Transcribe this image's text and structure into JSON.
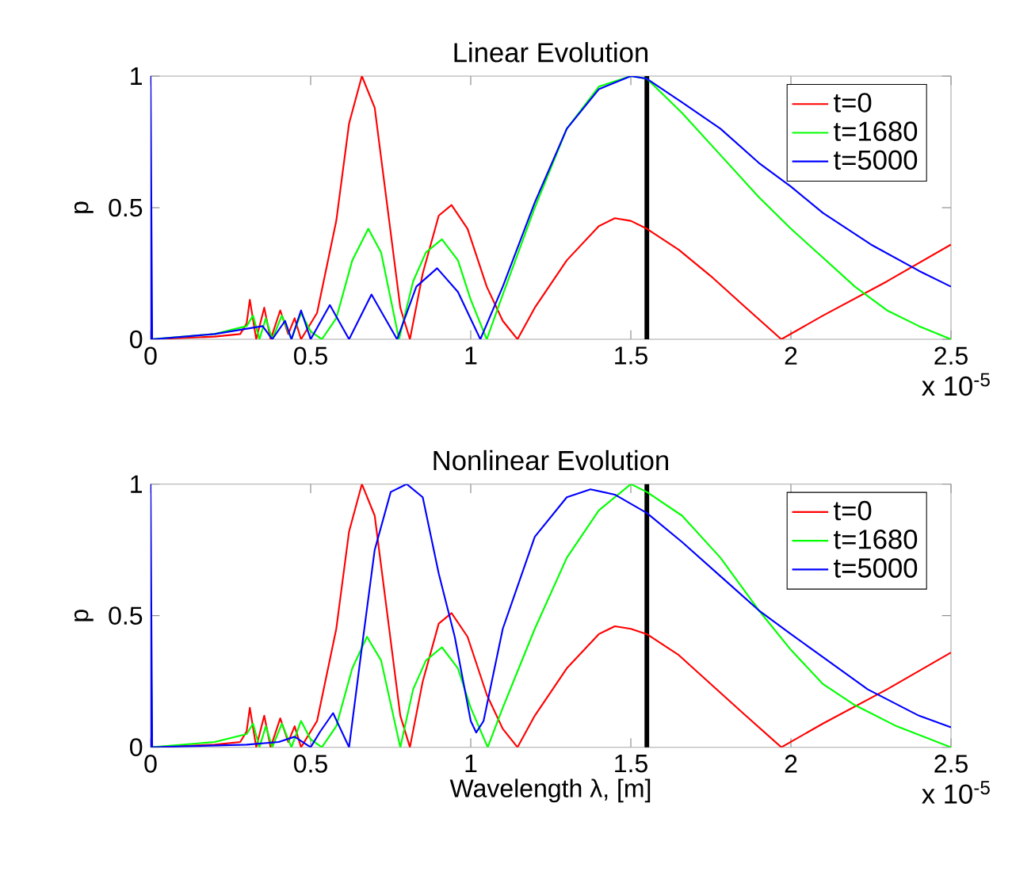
{
  "chart_data": [
    {
      "type": "line",
      "title": "Linear Evolution",
      "ylabel": "p",
      "annotations": [
        "x 10$^{-5}$"
      ],
      "xlim": [
        0,
        2.5
      ],
      "ylim": [
        0,
        1
      ],
      "xticks": [
        0,
        0.5,
        1,
        1.5,
        2,
        2.5
      ],
      "yticks": [
        0,
        0.5,
        1
      ],
      "legend": "top right",
      "ref_lines": [
        {
          "axis": "x",
          "value": 1.55,
          "color": "#000000"
        }
      ],
      "series": [
        {
          "name": "t=0",
          "color": "#ff0000",
          "x": [
            0,
            0.2,
            0.28,
            0.3,
            0.31,
            0.33,
            0.355,
            0.375,
            0.405,
            0.43,
            0.45,
            0.47,
            0.52,
            0.58,
            0.62,
            0.66,
            0.7,
            0.74,
            0.78,
            0.81,
            0.85,
            0.9,
            0.94,
            0.99,
            1.05,
            1.1,
            1.146,
            1.2,
            1.3,
            1.4,
            1.45,
            1.5,
            1.55,
            1.65,
            1.75,
            1.85,
            1.97,
            2.1,
            2.3,
            2.5
          ],
          "values": [
            0,
            0.01,
            0.02,
            0.06,
            0.15,
            0.0,
            0.12,
            0.0,
            0.11,
            0.02,
            0.08,
            0,
            0.1,
            0.45,
            0.82,
            1.0,
            0.88,
            0.5,
            0.12,
            0,
            0.25,
            0.47,
            0.51,
            0.42,
            0.2,
            0.07,
            0,
            0.12,
            0.3,
            0.43,
            0.46,
            0.45,
            0.42,
            0.34,
            0.24,
            0.13,
            0,
            0.09,
            0.22,
            0.36
          ]
        },
        {
          "name": "t=1680",
          "color": "#00ff00",
          "x": [
            0,
            0.2,
            0.3,
            0.32,
            0.34,
            0.36,
            0.38,
            0.41,
            0.44,
            0.47,
            0.5,
            0.535,
            0.58,
            0.63,
            0.68,
            0.72,
            0.776,
            0.82,
            0.86,
            0.91,
            0.96,
            1.0,
            1.05,
            1.1,
            1.2,
            1.3,
            1.4,
            1.5,
            1.55,
            1.66,
            1.78,
            1.9,
            2.0,
            2.1,
            2.2,
            2.3,
            2.4,
            2.5
          ],
          "values": [
            0,
            0.02,
            0.05,
            0.09,
            0,
            0.08,
            0,
            0.09,
            0,
            0.1,
            0.03,
            0,
            0.08,
            0.3,
            0.42,
            0.33,
            0,
            0.22,
            0.33,
            0.38,
            0.3,
            0.15,
            0,
            0.17,
            0.5,
            0.8,
            0.96,
            1.0,
            0.99,
            0.86,
            0.7,
            0.54,
            0.42,
            0.31,
            0.2,
            0.11,
            0.05,
            0.0
          ]
        },
        {
          "name": "t=5000",
          "color": "#0000ff",
          "x": [
            0,
            0,
            0.005,
            0.2,
            0.35,
            0.38,
            0.42,
            0.44,
            0.47,
            0.5,
            0.56,
            0.62,
            0.69,
            0.77,
            0.83,
            0.895,
            0.96,
            1.03,
            1.1,
            1.2,
            1.3,
            1.4,
            1.5,
            1.55,
            1.66,
            1.78,
            1.9,
            2.0,
            2.1,
            2.25,
            2.4,
            2.5
          ],
          "values": [
            0,
            1,
            0,
            0.02,
            0.05,
            0,
            0.07,
            0,
            0.11,
            0,
            0.13,
            0,
            0.17,
            0,
            0.2,
            0.27,
            0.18,
            0,
            0.2,
            0.52,
            0.8,
            0.95,
            1.0,
            0.99,
            0.9,
            0.8,
            0.67,
            0.58,
            0.48,
            0.36,
            0.26,
            0.2
          ]
        }
      ]
    },
    {
      "type": "line",
      "title": "Nonlinear Evolution",
      "xlabel": "Wavelength  λ, [m]",
      "ylabel": "p",
      "annotations": [
        "x 10$^{-5}$"
      ],
      "xlim": [
        0,
        2.5
      ],
      "ylim": [
        0,
        1
      ],
      "xticks": [
        0,
        0.5,
        1,
        1.5,
        2,
        2.5
      ],
      "yticks": [
        0,
        0.5,
        1
      ],
      "legend": "top right",
      "ref_lines": [
        {
          "axis": "x",
          "value": 1.55,
          "color": "#000000"
        }
      ],
      "series": [
        {
          "name": "t=0",
          "color": "#ff0000",
          "x": [
            0,
            0.2,
            0.28,
            0.3,
            0.31,
            0.33,
            0.355,
            0.375,
            0.405,
            0.43,
            0.45,
            0.47,
            0.52,
            0.58,
            0.62,
            0.66,
            0.7,
            0.74,
            0.78,
            0.81,
            0.85,
            0.9,
            0.94,
            0.99,
            1.05,
            1.1,
            1.146,
            1.2,
            1.3,
            1.4,
            1.45,
            1.5,
            1.55,
            1.65,
            1.75,
            1.85,
            1.97,
            2.1,
            2.3,
            2.5
          ],
          "values": [
            0,
            0.01,
            0.02,
            0.06,
            0.15,
            0.0,
            0.12,
            0.0,
            0.11,
            0.02,
            0.08,
            0,
            0.1,
            0.45,
            0.82,
            1.0,
            0.88,
            0.5,
            0.12,
            0,
            0.25,
            0.47,
            0.51,
            0.42,
            0.2,
            0.07,
            0,
            0.12,
            0.3,
            0.43,
            0.46,
            0.45,
            0.43,
            0.35,
            0.24,
            0.13,
            0,
            0.09,
            0.22,
            0.36
          ]
        },
        {
          "name": "t=1680",
          "color": "#00ff00",
          "x": [
            0,
            0,
            0.005,
            0.2,
            0.3,
            0.32,
            0.34,
            0.36,
            0.38,
            0.41,
            0.44,
            0.47,
            0.5,
            0.535,
            0.58,
            0.63,
            0.676,
            0.72,
            0.78,
            0.82,
            0.86,
            0.91,
            0.96,
            1.0,
            1.053,
            1.1,
            1.2,
            1.3,
            1.4,
            1.5,
            1.55,
            1.66,
            1.78,
            1.9,
            2.0,
            2.1,
            2.2,
            2.33,
            2.5
          ],
          "values": [
            0,
            0.5,
            0,
            0.02,
            0.05,
            0.09,
            0,
            0.08,
            0,
            0.09,
            0,
            0.1,
            0.03,
            0,
            0.08,
            0.3,
            0.42,
            0.33,
            0,
            0.22,
            0.33,
            0.38,
            0.3,
            0.15,
            0,
            0.15,
            0.45,
            0.72,
            0.9,
            1.0,
            0.97,
            0.88,
            0.72,
            0.52,
            0.37,
            0.24,
            0.16,
            0.08,
            0.0
          ]
        },
        {
          "name": "t=5000",
          "color": "#0000ff",
          "x": [
            0,
            0,
            0.005,
            0.3,
            0.4,
            0.45,
            0.5,
            0.53,
            0.57,
            0.62,
            0.66,
            0.7,
            0.75,
            0.8,
            0.85,
            0.9,
            0.95,
            1.0,
            1.017,
            1.04,
            1.1,
            1.2,
            1.3,
            1.374,
            1.45,
            1.55,
            1.66,
            1.78,
            1.9,
            2.0,
            2.08,
            2.24,
            2.4,
            2.5
          ],
          "values": [
            0,
            1,
            0,
            0.01,
            0.02,
            0.04,
            0.0,
            0.06,
            0.13,
            0,
            0.38,
            0.75,
            0.97,
            1.0,
            0.95,
            0.66,
            0.42,
            0.1,
            0.056,
            0.1,
            0.45,
            0.8,
            0.95,
            0.98,
            0.96,
            0.89,
            0.78,
            0.65,
            0.52,
            0.43,
            0.36,
            0.22,
            0.12,
            0.076
          ]
        }
      ]
    }
  ]
}
